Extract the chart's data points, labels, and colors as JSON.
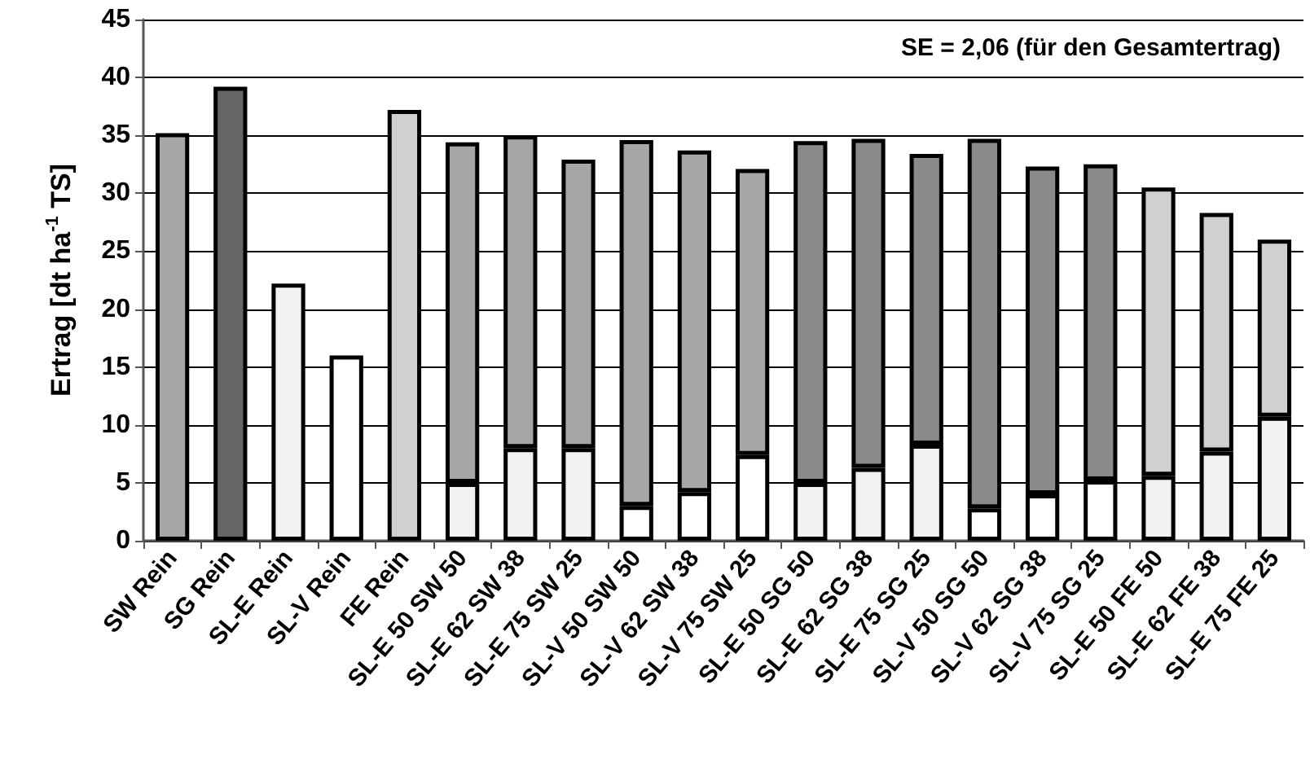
{
  "chart_data": {
    "type": "bar",
    "stacked": true,
    "ylabel": "Ertrag [dt ha$^{-1}$ TS]",
    "annotations": [
      "SE = 2,06 (für den Gesamtertrag)"
    ],
    "categories": [
      "SW Rein",
      "SG Rein",
      "SL-E Rein",
      "SL-V Rein",
      "FE Rein",
      "SL-E 50 SW 50",
      "SL-E 62 SW 38",
      "SL-E 75 SW 25",
      "SL-V 50 SW 50",
      "SL-V 62 SW 38",
      "SL-V 75 SW 25",
      "SL-E 50 SG 50",
      "SL-E 62 SG 38",
      "SL-E 75 SG 25",
      "SL-V 50 SG 50",
      "SL-V 62 SG 38",
      "SL-V 75 SG 25",
      "SL-E 50 FE 50",
      "SL-E 62 FE 38",
      "SL-E 75 FE 25"
    ],
    "series": [
      {
        "values": [
          null,
          null,
          22.2,
          16.0,
          null,
          5.0,
          8.0,
          8.0,
          3.0,
          4.2,
          7.4,
          5.0,
          6.3,
          8.3,
          2.8,
          4.0,
          5.2,
          5.6,
          7.7,
          10.7
        ],
        "colors": [
          null,
          null,
          "#f2f2f2",
          "#ffffff",
          null,
          "#f2f2f2",
          "#f2f2f2",
          "#f2f2f2",
          "#ffffff",
          "#ffffff",
          "#ffffff",
          "#f2f2f2",
          "#f2f2f2",
          "#f2f2f2",
          "#ffffff",
          "#ffffff",
          "#ffffff",
          "#f2f2f2",
          "#f2f2f2",
          "#f2f2f2"
        ]
      },
      {
        "values": [
          35.2,
          39.2,
          null,
          null,
          37.2,
          29.4,
          27.0,
          24.9,
          31.6,
          29.5,
          24.7,
          29.5,
          28.4,
          25.1,
          31.9,
          28.3,
          27.3,
          24.9,
          20.6,
          15.3
        ],
        "colors": [
          "#a6a6a6",
          "#666666",
          null,
          null,
          "#d0d0d0",
          "#a6a6a6",
          "#a6a6a6",
          "#a6a6a6",
          "#a6a6a6",
          "#a6a6a6",
          "#a6a6a6",
          "#8a8a8a",
          "#8a8a8a",
          "#8a8a8a",
          "#8a8a8a",
          "#8a8a8a",
          "#8a8a8a",
          "#d0d0d0",
          "#d0d0d0",
          "#d0d0d0"
        ]
      }
    ],
    "ylim": [
      0,
      45
    ],
    "yticks": [
      0,
      5,
      10,
      15,
      20,
      25,
      30,
      35,
      40,
      45
    ],
    "grid": "y"
  }
}
